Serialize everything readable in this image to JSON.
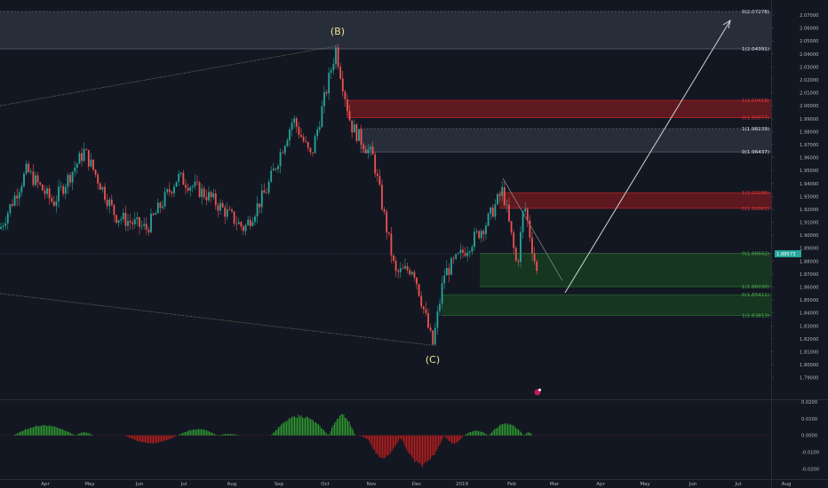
{
  "chart_data": {
    "type": "candlestick",
    "price_axis": {
      "ticks": [
        "2.07000",
        "2.06000",
        "2.05000",
        "2.04000",
        "2.03000",
        "2.02000",
        "2.01000",
        "2.00000",
        "1.99000",
        "1.98000",
        "1.97000",
        "1.96000",
        "1.95000",
        "1.94000",
        "1.93000",
        "1.92000",
        "1.91000",
        "1.90000",
        "1.89000",
        "1.88000",
        "1.87000",
        "1.86000",
        "1.85000",
        "1.84000",
        "1.83000",
        "1.82000",
        "1.81000",
        "1.80000",
        "1.79000"
      ],
      "range": [
        1.785,
        2.0755
      ]
    },
    "time_axis": {
      "ticks": [
        "Apr",
        "May",
        "Jun",
        "Jul",
        "Aug",
        "Sep",
        "Oct",
        "Nov",
        "Dec",
        "2019",
        "Feb",
        "Mar",
        "Apr",
        "May",
        "Jun",
        "Jul",
        "Aug"
      ]
    },
    "current_price": {
      "label": "1.88573",
      "value": 1.8857
    },
    "wave_labels": [
      {
        "text": "(B)",
        "value": 2.0455
      },
      {
        "text": "(C)",
        "value": 1.8125
      }
    ],
    "zones": [
      {
        "kind": "gray",
        "top_label": "0(2.07278)",
        "top": 2.07278,
        "bottom_label": "1(2.04391)",
        "bottom": 2.04391
      },
      {
        "kind": "red",
        "top_label": "1(2.00418)",
        "top": 2.00418,
        "bottom_label": "0(1.99077)",
        "bottom": 1.99077
      },
      {
        "kind": "gray",
        "top_label": "1(1.98239)",
        "top": 1.98239,
        "bottom_label": "0(1.96437)",
        "bottom": 1.96437
      },
      {
        "kind": "red",
        "top_label": "1(1.93286)",
        "top": 1.93286,
        "bottom_label": "0(1.92081)",
        "bottom": 1.92081
      },
      {
        "kind": "green",
        "top_label": "0(1.88602)",
        "top": 1.88602,
        "bottom_label": "1(1.86030)",
        "bottom": 1.8603
      },
      {
        "kind": "green",
        "top_label": "0(1.85411)",
        "top": 1.85411,
        "bottom_label": "1(1.83813)",
        "bottom": 1.83813
      }
    ],
    "oscillator": {
      "ticks": [
        "0.0200",
        "0.0100",
        "0.0000",
        "-0.0100",
        "-0.0200"
      ],
      "range": [
        -0.025,
        0.0205
      ]
    },
    "colors": {
      "up": "#26a69a",
      "down": "#ef5350",
      "background": "#131722",
      "red_zone": "#b71c1c",
      "green_zone": "#1b5e20",
      "gray_zone": "#3a3f4e",
      "label_red": "#e53935",
      "label_green": "#4caf50",
      "label_white": "#e0e3eb",
      "arrow": "#d1d4dc",
      "current_price_bg": "#26a69a"
    }
  }
}
